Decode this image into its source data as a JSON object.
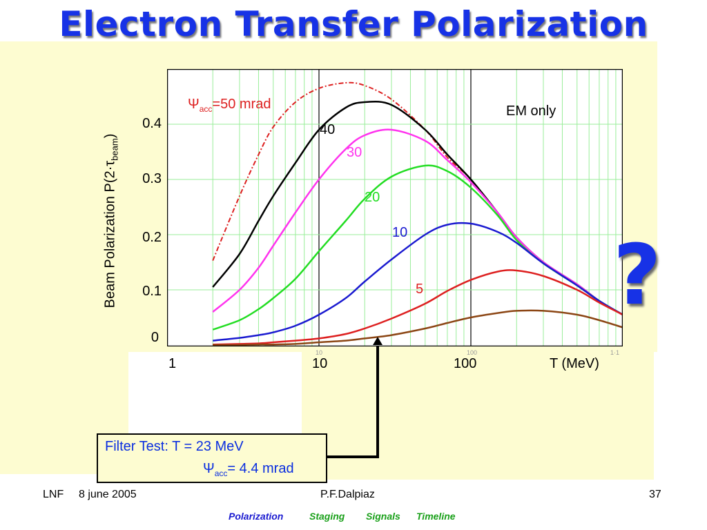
{
  "title": "Electron Transfer Polarization",
  "question_mark": "?",
  "chart_data": {
    "type": "line",
    "xscale": "log",
    "xlabel": "T (MeV)",
    "ylabel_main": "Beam Polarization P(2·τ",
    "ylabel_sub": "beam",
    "ylabel_end": ")",
    "xlim": [
      1,
      1000
    ],
    "ylim": [
      0,
      0.5
    ],
    "x_ticks": [
      "1",
      "10",
      "100"
    ],
    "y_ticks": [
      "0",
      "0.1",
      "0.2",
      "0.3",
      "0.4"
    ],
    "grid": true,
    "x": [
      2,
      3,
      4,
      5,
      7,
      10,
      15,
      20,
      30,
      50,
      70,
      100,
      150,
      200,
      300,
      500,
      700,
      1000
    ],
    "series": [
      {
        "label": "50",
        "color": "#dd1f1f",
        "dash": true,
        "values": [
          0.153,
          0.27,
          0.345,
          0.395,
          0.44,
          0.465,
          0.475,
          0.47,
          0.445,
          0.39,
          0.34,
          0.3,
          0.24,
          0.195,
          0.15,
          0.11,
          0.08,
          0.055
        ]
      },
      {
        "label": "40",
        "color": "#000000",
        "dash": false,
        "values": [
          0.105,
          0.165,
          0.225,
          0.27,
          0.33,
          0.39,
          0.43,
          0.44,
          0.435,
          0.39,
          0.345,
          0.3,
          0.24,
          0.195,
          0.15,
          0.11,
          0.08,
          0.055
        ]
      },
      {
        "label": "30",
        "color": "#ff33ee",
        "dash": false,
        "values": [
          0.06,
          0.1,
          0.14,
          0.18,
          0.24,
          0.3,
          0.355,
          0.38,
          0.39,
          0.37,
          0.335,
          0.295,
          0.24,
          0.195,
          0.15,
          0.11,
          0.08,
          0.055
        ]
      },
      {
        "label": "20",
        "color": "#22dd22",
        "dash": false,
        "values": [
          0.028,
          0.045,
          0.065,
          0.085,
          0.12,
          0.17,
          0.225,
          0.265,
          0.305,
          0.325,
          0.315,
          0.285,
          0.235,
          0.19,
          0.148,
          0.108,
          0.08,
          0.055
        ]
      },
      {
        "label": "10",
        "color": "#1a1ad0",
        "dash": false,
        "values": [
          0.008,
          0.013,
          0.018,
          0.023,
          0.035,
          0.055,
          0.085,
          0.115,
          0.155,
          0.2,
          0.218,
          0.22,
          0.205,
          0.185,
          0.148,
          0.108,
          0.08,
          0.055
        ]
      },
      {
        "label": "5",
        "color": "#dd1f1f",
        "dash": false,
        "values": [
          0.001,
          0.002,
          0.003,
          0.005,
          0.008,
          0.012,
          0.02,
          0.03,
          0.048,
          0.075,
          0.098,
          0.118,
          0.133,
          0.135,
          0.125,
          0.1,
          0.077,
          0.055
        ]
      },
      {
        "label": "",
        "color": "#8b4513",
        "dash": false,
        "values": [
          0.0,
          0.0,
          0.001,
          0.001,
          0.002,
          0.005,
          0.008,
          0.012,
          0.018,
          0.03,
          0.04,
          0.05,
          0.058,
          0.062,
          0.062,
          0.055,
          0.045,
          0.032
        ]
      }
    ],
    "annotations": {
      "psi_symbol": "Ψ",
      "psi_sub": "acc",
      "psi_value": "=50 mrad",
      "em_only": "EM only",
      "label_40": "40",
      "label_30": "30",
      "label_20": "20",
      "label_10": "10",
      "label_5": "5"
    },
    "faint_ticks": [
      "10",
      "100",
      "1·1"
    ],
    "arrow_target_x": 23
  },
  "filter_box": {
    "line1": "Filter Test: T = 23 MeV",
    "psi_symbol": "Ψ",
    "psi_sub": "acc",
    "line2_value": "= 4.4 mrad"
  },
  "footer": {
    "left_org": "LNF",
    "left_date": "8 june 2005",
    "center": "P.F.Dalpiaz",
    "right": "37"
  },
  "nav": [
    {
      "label": "Polarization",
      "color": "#1a1ad0"
    },
    {
      "label": "Staging",
      "color": "#1aa01a"
    },
    {
      "label": "Signals",
      "color": "#1aa01a"
    },
    {
      "label": "Timeline",
      "color": "#1aa01a"
    }
  ]
}
